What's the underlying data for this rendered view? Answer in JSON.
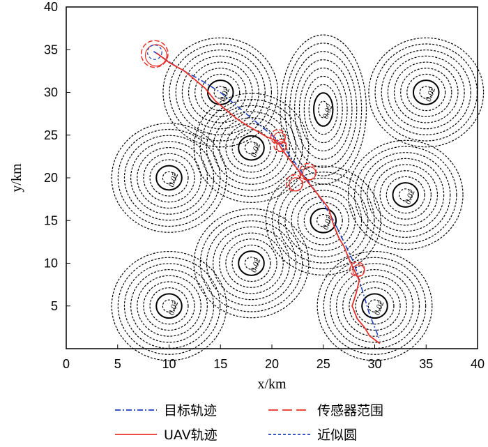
{
  "chart_data": {
    "type": "line",
    "xlabel": "x/km",
    "ylabel": "y/km",
    "xlim": [
      0,
      40
    ],
    "ylim": [
      0,
      40
    ],
    "x_ticks": [
      0,
      5,
      10,
      15,
      20,
      25,
      30,
      35,
      40
    ],
    "y_ticks": [
      5,
      10,
      15,
      20,
      25,
      30,
      35,
      40
    ],
    "grid": false,
    "legend_position": "bottom",
    "legend": [
      {
        "label": "目标轨迹",
        "color": "#1f3fbf",
        "style": "dash-dot"
      },
      {
        "label": "传感器范围",
        "color": "#e8302a",
        "style": "dashed"
      },
      {
        "label": "UAV轨迹",
        "color": "#e8302a",
        "style": "solid"
      },
      {
        "label": "近似圆",
        "color": "#1f3fbf",
        "style": "dashed"
      }
    ],
    "contour_peaks": [
      {
        "x": 15,
        "y": 30,
        "label": "0.02"
      },
      {
        "x": 25,
        "y": 28,
        "label": "0.02"
      },
      {
        "x": 35,
        "y": 30,
        "label": "0.02"
      },
      {
        "x": 18,
        "y": 23.5,
        "label": "0.02"
      },
      {
        "x": 10,
        "y": 20,
        "label": "0.02"
      },
      {
        "x": 33,
        "y": 18,
        "label": "0.02"
      },
      {
        "x": 25,
        "y": 15,
        "label": "0.02"
      },
      {
        "x": 18,
        "y": 10,
        "label": "0.02"
      },
      {
        "x": 10,
        "y": 5,
        "label": "0.02"
      },
      {
        "x": 30,
        "y": 5,
        "label": "0.02"
      }
    ],
    "series": [
      {
        "name": "目标轨迹",
        "x": [
          8.5,
          9.5,
          11,
          13,
          15,
          17,
          19,
          20.5,
          21.5,
          23,
          24.5,
          26,
          27,
          28,
          28.5,
          29,
          29.5,
          30.5
        ],
        "y": [
          34.8,
          34,
          32.8,
          31.5,
          30,
          28,
          26,
          24.5,
          23,
          20.5,
          18,
          15,
          12.5,
          10,
          8,
          6,
          4,
          1
        ]
      },
      {
        "name": "UAV轨迹",
        "x": [
          8.8,
          10,
          11.5,
          12.5,
          13.5,
          14.5,
          15.5,
          16.5,
          17.5,
          18.5,
          19.5,
          20.5,
          21,
          21.5,
          22.5,
          23.5,
          24.5,
          25.5,
          26,
          26.5,
          27,
          27.5,
          28,
          28.5,
          28.2,
          27.8,
          28.3,
          29,
          29.5,
          30.5
        ],
        "y": [
          34.6,
          33.5,
          32.5,
          31.5,
          30.5,
          29,
          28,
          27,
          26.2,
          25.5,
          24.8,
          24.3,
          23.3,
          22.5,
          21,
          19.5,
          18,
          16.5,
          14.5,
          13,
          12,
          10.5,
          9.2,
          8,
          6.5,
          5,
          3.5,
          2.5,
          1.5,
          0.6
        ]
      }
    ],
    "sensor_circles": [
      {
        "x": 8.6,
        "y": 34.5,
        "r": 1.3
      },
      {
        "x": 20.6,
        "y": 24.8,
        "r": 0.7
      },
      {
        "x": 20.8,
        "y": 23.8,
        "r": 0.6
      },
      {
        "x": 23.5,
        "y": 20.7,
        "r": 0.8
      },
      {
        "x": 22.2,
        "y": 19.4,
        "r": 0.8
      },
      {
        "x": 28.3,
        "y": 9.3,
        "r": 0.7
      }
    ],
    "approx_circle": {
      "x": 8.6,
      "y": 34.7,
      "r": 0.7
    }
  }
}
